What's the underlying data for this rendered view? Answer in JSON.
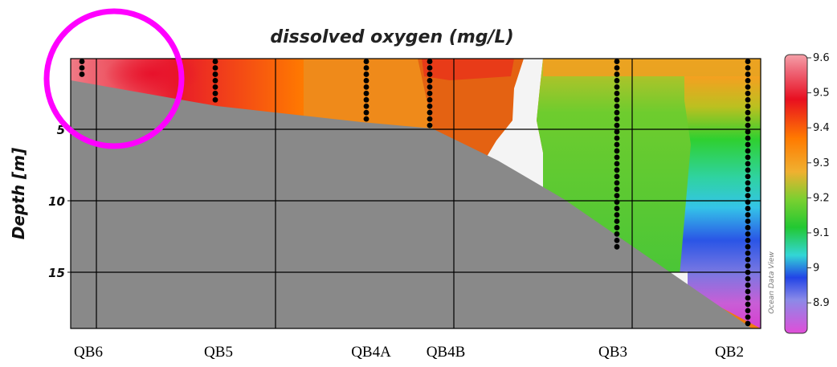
{
  "chart_data": {
    "type": "heatmap",
    "title": "dissolved oxygen (mg/L)",
    "ylabel": "Depth [m]",
    "xlabel": "",
    "y_ticks": [
      "5",
      "10",
      "15"
    ],
    "y_tick_values": [
      5,
      10,
      15
    ],
    "ylim": [
      0,
      19
    ],
    "stations": [
      "QB6",
      "QB5",
      "QB4A",
      "QB4B",
      "QB3",
      "QB2"
    ],
    "colorbar": {
      "label_ticks": [
        "9.6",
        "9.5",
        "9.4",
        "9.3",
        "9.2",
        "9.1",
        "9",
        "8.9"
      ],
      "range": [
        8.82,
        9.6
      ],
      "colors": {
        "low": "#d63fd0",
        "blue": "#2244e6",
        "cyan": "#33d0e0",
        "green": "#22c832",
        "yellow": "#f0a020",
        "orange": "#ff8000",
        "red": "#e8102a",
        "high": "#f07a86"
      }
    },
    "station_profiles": [
      {
        "station": "QB6",
        "max_depth_m": 1.4,
        "do_mg_L": 9.56
      },
      {
        "station": "QB5",
        "max_depth_m": 3.2,
        "do_mg_L": 9.45
      },
      {
        "station": "QB4A",
        "max_depth_m": 4.3,
        "do_mg_L": 9.42
      },
      {
        "station": "QB4B",
        "max_depth_m": 5.0,
        "do_mg_L": 9.42
      },
      {
        "station": "QB3",
        "max_depth_m": 13.5,
        "do_mg_L": 9.22
      },
      {
        "station": "QB2",
        "max_depth_m": 19.0,
        "do_mg_L_surface": 9.3,
        "do_mg_L_bottom": 8.9
      }
    ],
    "grid": true,
    "credit": "Ocean Data View",
    "highlight": {
      "shape": "circle",
      "color": "#ff00ff",
      "target_station": "QB6"
    }
  }
}
